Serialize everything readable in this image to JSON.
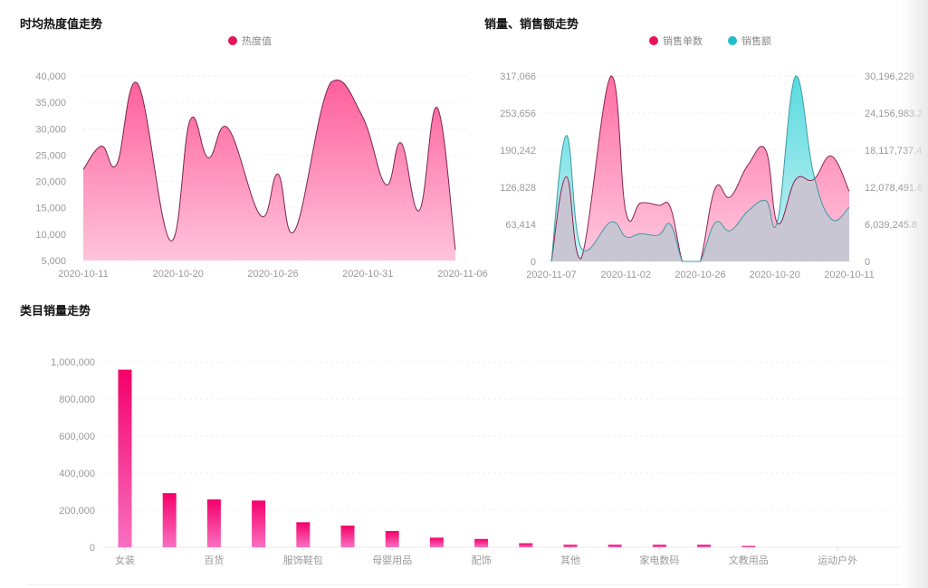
{
  "panels": {
    "heat": {
      "title": "时均热度值走势",
      "legend": [
        {
          "label": "热度值",
          "color": "#e8145a"
        }
      ]
    },
    "sales": {
      "title": "销量、销售额走势",
      "legend": [
        {
          "label": "销售单数",
          "color": "#e8145a"
        },
        {
          "label": "销售额",
          "color": "#1fbfc9"
        }
      ]
    },
    "category": {
      "title": "类目销量走势"
    }
  },
  "chart_data": [
    {
      "type": "area",
      "title": "时均热度值走势",
      "legend": [
        "热度值"
      ],
      "xlabel": "",
      "ylabel": "",
      "ylim": [
        5000,
        40000
      ],
      "y_ticks": [
        "40,000",
        "35,000",
        "30,000",
        "25,000",
        "20,000",
        "15,000",
        "10,000",
        "5,000"
      ],
      "x_tick_labels": [
        "2020-10-11",
        "2020-10-20",
        "2020-10-26",
        "2020-10-31",
        "2020-11-06"
      ],
      "grid": true,
      "series": [
        {
          "name": "热度值",
          "color": "#e8145a",
          "x_pos": [
            0,
            0.049,
            0.09,
            0.146,
            0.234,
            0.287,
            0.336,
            0.389,
            0.477,
            0.523,
            0.569,
            0.664,
            0.749,
            0.813,
            0.854,
            0.903,
            0.951,
            1.0
          ],
          "values": [
            22300,
            26700,
            23300,
            38600,
            8800,
            31600,
            24500,
            30100,
            13500,
            21400,
            10800,
            38700,
            32500,
            19400,
            27300,
            14500,
            34000,
            7000
          ]
        }
      ]
    },
    {
      "type": "area",
      "title": "销量、销售额走势",
      "legend": [
        "销售单数",
        "销售额"
      ],
      "y_left_ticks": [
        "317,066",
        "253,656",
        "190,242",
        "126,828",
        "63,414",
        "0"
      ],
      "y_right_ticks": [
        "30,196,229",
        "24,156,983.2",
        "18,117,737.4",
        "12,078,491.6",
        "6,039,245.8",
        "0"
      ],
      "ylim_left": [
        0,
        317066
      ],
      "ylim_right": [
        0,
        30196229
      ],
      "x_tick_labels": [
        "2020-11-07",
        "2020-11-02",
        "2020-10-26",
        "2020-10-20",
        "2020-10-11"
      ],
      "grid": true,
      "series": [
        {
          "name": "销售单数",
          "axis": "left",
          "color": "#e8145a",
          "x_pos": [
            0,
            0.05,
            0.1,
            0.2,
            0.25,
            0.3,
            0.36,
            0.4,
            0.44,
            0.47,
            0.5,
            0.55,
            0.6,
            0.66,
            0.72,
            0.76,
            0.82,
            0.88,
            0.94,
            1.0
          ],
          "values": [
            0,
            145000,
            5000,
            317066,
            85000,
            100000,
            96000,
            92000,
            0,
            0,
            0,
            125000,
            110000,
            165000,
            190000,
            65000,
            140000,
            140000,
            180000,
            120000
          ]
        },
        {
          "name": "销售额",
          "axis": "right",
          "color": "#1fbfc9",
          "x_pos": [
            0,
            0.05,
            0.1,
            0.2,
            0.25,
            0.3,
            0.36,
            0.4,
            0.44,
            0.47,
            0.5,
            0.55,
            0.6,
            0.66,
            0.72,
            0.76,
            0.82,
            0.88,
            0.94,
            1.0
          ],
          "values": [
            0,
            20500000,
            2200000,
            6400000,
            4000000,
            4500000,
            4300000,
            6000000,
            0,
            0,
            0,
            6300000,
            5000000,
            8200000,
            9900000,
            6800000,
            30196229,
            14300000,
            6900000,
            8800000
          ]
        }
      ]
    },
    {
      "type": "bar",
      "title": "类目销量走势",
      "categories": [
        "女装",
        "",
        "百货",
        "",
        "服饰鞋包",
        "",
        "母婴用品",
        "",
        "配饰",
        "",
        "其他",
        "",
        "家电数码",
        "",
        "文教用品",
        "",
        "运动户外"
      ],
      "x_tick_labels": [
        "女装",
        "百货",
        "服饰鞋包",
        "母婴用品",
        "配饰",
        "其他",
        "家电数码",
        "文教用品",
        "运动户外"
      ],
      "values": [
        958000,
        292000,
        258000,
        252000,
        135000,
        117000,
        88000,
        52000,
        45000,
        22000,
        14000,
        14000,
        14000,
        14000,
        4000,
        0,
        0
      ],
      "y_ticks": [
        "1,000,000",
        "800,000",
        "600,000",
        "400,000",
        "200,000",
        "0"
      ],
      "ylim": [
        0,
        1000000
      ],
      "grid": true,
      "xlabel": "",
      "ylabel": ""
    }
  ]
}
